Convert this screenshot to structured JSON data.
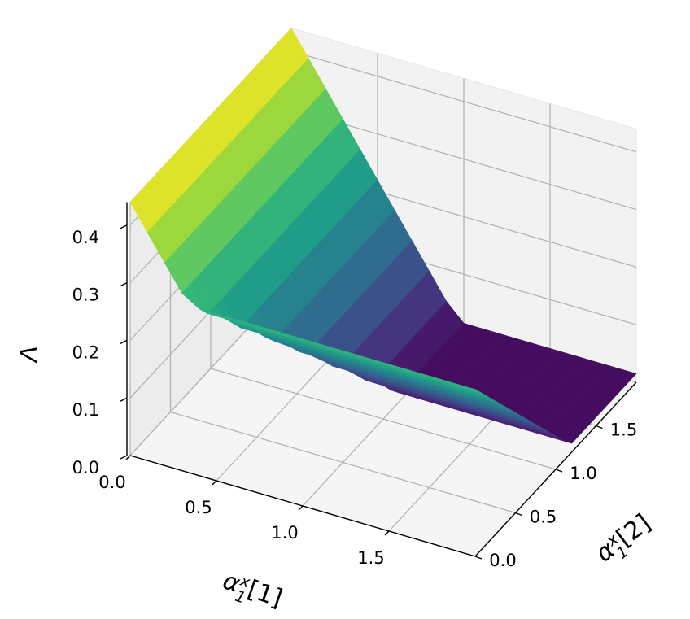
{
  "chart_data": {
    "type": "surface3d",
    "colormap": "viridis",
    "axes": {
      "x": {
        "label_main": "α",
        "label_sub": "1",
        "label_sup": "x",
        "label_suffix": "[1]",
        "range": [
          0,
          2
        ],
        "ticks": [
          "0.0",
          "0.5",
          "1.0",
          "1.5"
        ]
      },
      "y": {
        "label_main": "α",
        "label_sub": "1",
        "label_sup": "x",
        "label_suffix": "[2]",
        "range": [
          0,
          2
        ],
        "ticks": [
          "0.0",
          "0.5",
          "1.0",
          "1.5"
        ]
      },
      "z": {
        "label": "Λ",
        "range": [
          0,
          0.44
        ],
        "ticks": [
          "0.0",
          "0.1",
          "0.2",
          "0.3",
          "0.4"
        ]
      }
    },
    "surface_function": "max(0, 0.4 - 0.2*alpha1 - 0.2*alpha2)-style piecewise-linear surface, sampled on a grid",
    "grid": {
      "x": [
        0,
        0.1,
        0.2,
        0.3,
        0.4,
        0.5,
        0.6,
        0.7,
        0.8,
        0.9,
        1.0,
        1.1,
        1.2,
        1.3,
        1.4,
        1.5,
        1.6,
        1.7,
        1.8,
        1.9,
        2.0
      ],
      "y": [
        0,
        0.1,
        0.2,
        0.3,
        0.4,
        0.5,
        0.6,
        0.7,
        0.8,
        0.9,
        1.0,
        1.1,
        1.2,
        1.3,
        1.4,
        1.5,
        1.6,
        1.7,
        1.8,
        1.9,
        2.0
      ]
    },
    "corner_values": {
      "z_at_x0_y0": 0.44,
      "z_at_x2_y0": 0.0,
      "z_at_x0_y2": 0.29,
      "z_at_x2_y2": 0.02
    },
    "grid_on": true
  }
}
